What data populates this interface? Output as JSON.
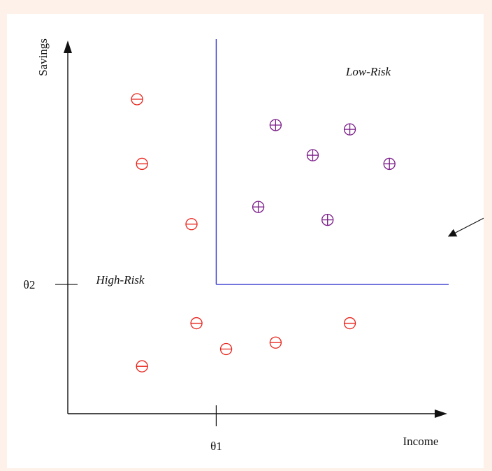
{
  "chart_data": {
    "type": "scatter",
    "title": "",
    "xlabel": "Income",
    "ylabel": "Savings",
    "threshold_x_label": "θ1",
    "threshold_y_label": "θ2",
    "regions": [
      {
        "name": "low-risk-region",
        "label": "Low-Risk"
      },
      {
        "name": "high-risk-region",
        "label": "High-Risk"
      }
    ],
    "series": [
      {
        "name": "",
        "marker": "circle-minus",
        "color": "#e8231a",
        "points": [
          [
            1.4,
            7.3
          ],
          [
            1.5,
            5.8
          ],
          [
            2.5,
            4.4
          ],
          [
            2.6,
            2.1
          ],
          [
            3.2,
            1.5
          ],
          [
            4.2,
            1.65
          ],
          [
            5.7,
            2.1
          ],
          [
            1.5,
            1.1
          ]
        ]
      },
      {
        "name": "",
        "marker": "circle-plus",
        "color": "#7a1b88",
        "points": [
          [
            4.2,
            6.7
          ],
          [
            5.7,
            6.6
          ],
          [
            4.95,
            6.0
          ],
          [
            6.5,
            5.8
          ],
          [
            3.85,
            4.8
          ],
          [
            5.25,
            4.5
          ]
        ]
      }
    ],
    "theta": {
      "x": 3.0,
      "y": 3.0
    },
    "xlim": [
      0,
      7.5
    ],
    "ylim": [
      0,
      8.5
    ],
    "grid": false,
    "legend": "none",
    "boundary_color": "#3a3ad0"
  }
}
